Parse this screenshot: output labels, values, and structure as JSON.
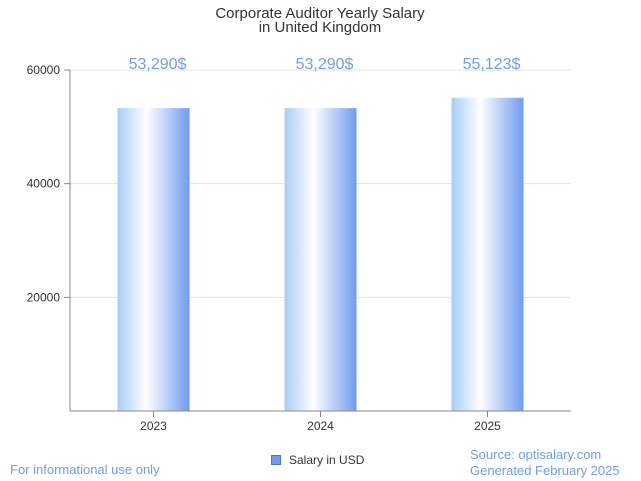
{
  "colors": {
    "accent": "#6ea0e6",
    "bar_edge": "#6f9cf0",
    "bar_mid": "#ffffff",
    "bar_light": "#a8cdf8",
    "axis": "#888888",
    "grid": "#e3e3e3",
    "text": "#333333"
  },
  "chart_data": {
    "type": "bar",
    "title_lines": [
      "Corporate Auditor Yearly Salary",
      "in United Kingdom"
    ],
    "categories": [
      "2023",
      "2024",
      "2025"
    ],
    "series": [
      {
        "name": "Salary in USD",
        "values": [
          53290,
          53290,
          55123
        ]
      }
    ],
    "data_labels": [
      "53,290$",
      "53,290$",
      "55,123$"
    ],
    "y_ticks": [
      "20000",
      "40000",
      "60000"
    ],
    "ylim": [
      0,
      60000
    ],
    "grid": true,
    "legend_position": "bottom-center"
  },
  "footer": {
    "note": "For informational use only",
    "source": "Source: optisalary.com",
    "generated": "Generated February 2025"
  }
}
